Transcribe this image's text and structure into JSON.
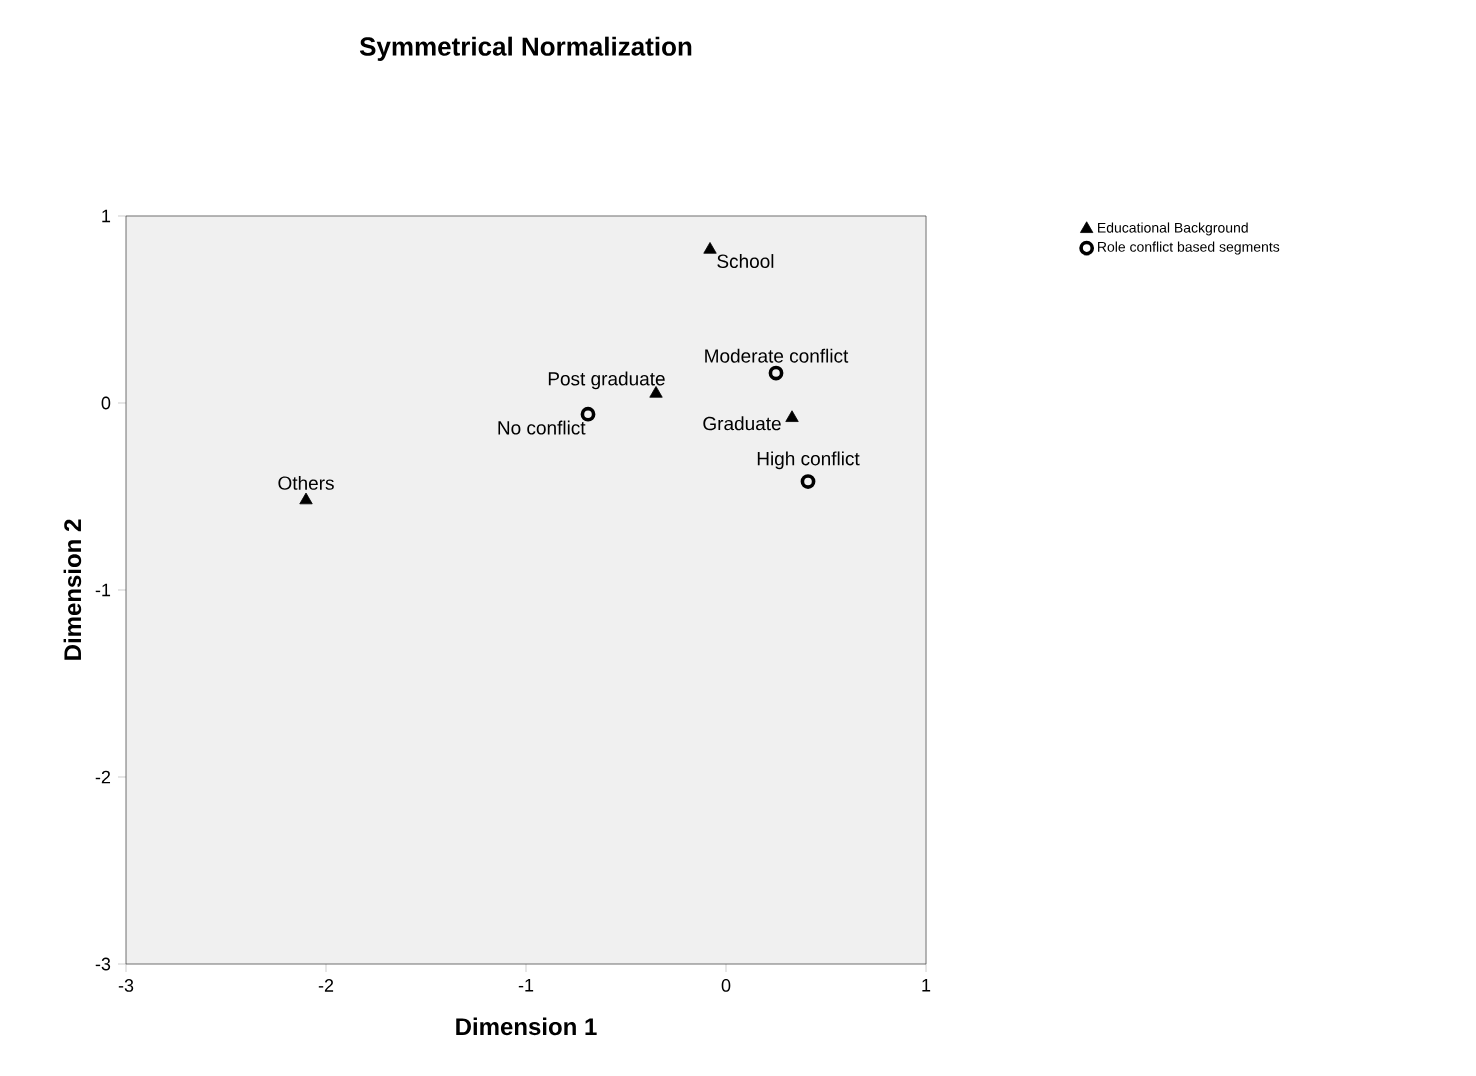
{
  "chart_data": {
    "type": "scatter",
    "title": "Symmetrical Normalization",
    "xlabel": "Dimension 1",
    "ylabel": "Dimension 2",
    "xlim": [
      -3,
      1
    ],
    "ylim": [
      -3,
      1
    ],
    "xticks": [
      -3,
      -2,
      -1,
      0,
      1
    ],
    "yticks": [
      -3,
      -2,
      -1,
      0,
      1
    ],
    "grid": false,
    "legend": "top right",
    "series": [
      {
        "name": "Educational Background",
        "color": "#000000",
        "marker": "triangle",
        "x": [
          -0.08,
          -0.35,
          0.33,
          -2.1
        ],
        "values": [
          0.82,
          0.05,
          -0.08,
          -0.52
        ]
      },
      {
        "name": "Role conflict based segments",
        "color": "#000000",
        "marker": "circle",
        "x": [
          0.25,
          -0.69,
          0.41
        ],
        "values": [
          0.16,
          -0.06,
          -0.42
        ]
      }
    ],
    "annotations": [
      {
        "text": "School",
        "x": -0.08,
        "y": 0.82
      },
      {
        "text": "Post graduate",
        "x": -0.35,
        "y": 0.05
      },
      {
        "text": "Graduate",
        "x": 0.33,
        "y": -0.08
      },
      {
        "text": "Others",
        "x": -2.1,
        "y": -0.52
      },
      {
        "text": "Moderate conflict",
        "x": 0.25,
        "y": 0.16
      },
      {
        "text": "No conflict",
        "x": -0.69,
        "y": -0.06
      },
      {
        "text": "High conflict",
        "x": 0.41,
        "y": -0.42
      }
    ]
  }
}
